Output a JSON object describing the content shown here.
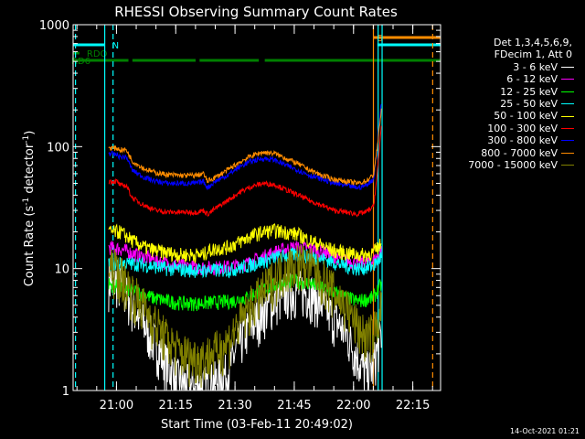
{
  "chart_data": {
    "type": "line",
    "title": "RHESSI Observing Summary Count Rates",
    "xlabel": "Start Time (03-Feb-11 20:49:02)",
    "ylabel_prefix": "Count Rate (s",
    "ylabel_mid": " detector",
    "ylabel_sup": "-1",
    "y_scale": "log",
    "ylim": [
      1,
      1000
    ],
    "xlim_minutes_after_start": [
      0,
      93
    ],
    "x_ticks": [
      {
        "label": "21:00",
        "minutes": 10.97
      },
      {
        "label": "21:15",
        "minutes": 25.97
      },
      {
        "label": "21:30",
        "minutes": 40.97
      },
      {
        "label": "21:45",
        "minutes": 55.97
      },
      {
        "label": "22:00",
        "minutes": 70.97
      },
      {
        "label": "22:15",
        "minutes": 85.97
      }
    ],
    "y_ticks": [
      {
        "label": "1",
        "value": 1
      },
      {
        "label": "10",
        "value": 10
      },
      {
        "label": "100",
        "value": 100
      },
      {
        "label": "1000",
        "value": 1000
      }
    ],
    "legend_header": [
      "Det 1,3,4,5,6,9,",
      "FDecim 1, Att 0"
    ],
    "legend_placement": "right",
    "series": [
      {
        "name": "3 - 6 keV",
        "color": "#ffffff",
        "x": [
          9.0,
          11.0,
          13.0,
          15.0,
          18.0,
          21.0,
          24.0,
          27.0,
          30.0,
          33.0,
          36.0,
          39.0,
          42.0,
          45.0,
          48.0,
          51.0,
          54.0,
          57.0,
          60.0,
          63.0,
          66.0,
          69.0,
          72.0,
          74.0,
          76.0,
          78.0
        ],
        "y": [
          8.0,
          8.0,
          6.5,
          5.0,
          3.5,
          2.4,
          1.6,
          1.2,
          1.1,
          1.1,
          1.2,
          1.4,
          2.5,
          3.5,
          4.5,
          5.6,
          6.4,
          6.8,
          6.4,
          5.2,
          4.0,
          3.0,
          1.9,
          1.4,
          1.6,
          3.0
        ]
      },
      {
        "name": "6 - 12 keV",
        "color": "#ff00ff",
        "x": [
          9.0,
          12.0,
          16.0,
          20.0,
          24.0,
          28.0,
          32.0,
          36.0,
          40.0,
          44.0,
          48.0,
          52.0,
          56.0,
          60.0,
          64.0,
          68.0,
          72.0,
          76.0,
          78.0
        ],
        "y": [
          15.0,
          14.5,
          13.0,
          12.0,
          11.0,
          10.5,
          10.2,
          10.2,
          10.4,
          11.0,
          12.5,
          14.0,
          15.0,
          14.5,
          13.5,
          12.0,
          11.0,
          11.5,
          14.0
        ]
      },
      {
        "name": "12 - 25 keV",
        "color": "#00ff00",
        "x": [
          9.0,
          12.0,
          16.0,
          20.0,
          24.0,
          28.0,
          32.0,
          36.0,
          40.0,
          44.0,
          48.0,
          52.0,
          56.0,
          60.0,
          64.0,
          68.0,
          72.0,
          76.0,
          78.0
        ],
        "y": [
          7.5,
          7.0,
          6.5,
          5.8,
          5.4,
          5.2,
          5.2,
          5.3,
          5.4,
          5.8,
          6.8,
          7.5,
          8.0,
          7.6,
          6.8,
          6.0,
          5.4,
          5.8,
          7.5
        ]
      },
      {
        "name": "25 - 50 keV",
        "color": "#00ffff",
        "x": [
          9.0,
          12.0,
          16.0,
          20.0,
          24.0,
          28.0,
          32.0,
          36.0,
          40.0,
          44.0,
          48.0,
          52.0,
          56.0,
          60.0,
          64.0,
          68.0,
          72.0,
          76.0,
          78.0
        ],
        "y": [
          11.0,
          11.0,
          11.0,
          10.5,
          10.0,
          9.8,
          9.7,
          9.7,
          9.8,
          10.5,
          11.5,
          12.5,
          13.0,
          12.6,
          11.8,
          10.8,
          10.0,
          10.5,
          12.5
        ]
      },
      {
        "name": "50 - 100 keV",
        "color": "#ffff00",
        "x": [
          9.0,
          11.0,
          12.0,
          15.0,
          18.0,
          21.0,
          24.0,
          27.0,
          31.0,
          33.0,
          34.0,
          36.0,
          39.0,
          42.0,
          45.0,
          48.0,
          51.0,
          54.0,
          57.0,
          60.0,
          63.0,
          66.0,
          69.0,
          72.0,
          74.0,
          76.0,
          78.0
        ],
        "y": [
          20.0,
          20.0,
          20.0,
          17.0,
          15.0,
          14.0,
          13.5,
          13.0,
          13.0,
          13.0,
          14.0,
          14.5,
          15.0,
          16.5,
          18.5,
          20.0,
          20.5,
          20.0,
          19.0,
          17.0,
          15.5,
          14.0,
          13.5,
          13.0,
          13.0,
          13.5,
          16.0
        ]
      },
      {
        "name": "100 - 300 keV",
        "color": "#ff0000",
        "x": [
          9.0,
          11.0,
          12.0,
          13.5,
          15.0,
          18.0,
          21.0,
          24.0,
          27.0,
          31.0,
          33.0,
          34.0,
          36.0,
          39.0,
          42.0,
          45.0,
          48.0,
          51.0,
          54.0,
          57.0,
          60.0,
          63.0,
          66.0,
          69.0,
          72.0,
          74.0,
          76.0,
          77.0,
          78.0
        ],
        "y": [
          52.0,
          52.0,
          48.0,
          48.0,
          38.0,
          33.0,
          30.0,
          29.0,
          29.0,
          29.0,
          30.0,
          28.0,
          31.0,
          36.0,
          42.0,
          47.0,
          50.0,
          49.0,
          44.0,
          40.0,
          36.0,
          33.0,
          30.0,
          29.0,
          28.0,
          29.0,
          32.0,
          60.0,
          150.0
        ]
      },
      {
        "name": "300 - 800 keV",
        "color": "#0000ff",
        "x": [
          9.0,
          11.0,
          12.0,
          13.5,
          15.0,
          18.0,
          21.0,
          24.0,
          27.0,
          31.0,
          33.0,
          34.0,
          36.0,
          39.0,
          42.0,
          45.0,
          48.0,
          51.0,
          54.0,
          57.0,
          60.0,
          63.0,
          66.0,
          69.0,
          72.0,
          74.0,
          76.0,
          77.0,
          78.0
        ],
        "y": [
          88.0,
          86.0,
          82.0,
          82.0,
          64.0,
          56.0,
          52.0,
          50.0,
          50.0,
          50.0,
          52.0,
          46.0,
          52.0,
          58.0,
          68.0,
          76.0,
          80.0,
          78.0,
          70.0,
          64.0,
          58.0,
          54.0,
          50.0,
          48.0,
          46.0,
          48.0,
          54.0,
          100.0,
          230.0
        ]
      },
      {
        "name": "800 - 7000 keV",
        "color": "#ff8c00",
        "x": [
          9.0,
          11.0,
          12.0,
          13.5,
          15.0,
          18.0,
          21.0,
          24.0,
          27.0,
          31.0,
          33.0,
          34.0,
          36.0,
          39.0,
          42.0,
          45.0,
          48.0,
          51.0,
          54.0,
          57.0,
          60.0,
          63.0,
          66.0,
          69.0,
          72.0,
          74.0,
          76.0,
          77.0,
          78.0
        ],
        "y": [
          98.0,
          97.0,
          94.0,
          94.0,
          76.0,
          66.0,
          61.0,
          59.0,
          58.0,
          58.0,
          60.0,
          52.0,
          56.0,
          64.0,
          74.0,
          84.0,
          90.0,
          88.0,
          80.0,
          72.0,
          64.0,
          58.0,
          54.0,
          52.0,
          50.0,
          52.0,
          58.0,
          100.0,
          200.0
        ]
      },
      {
        "name": "7000 - 15000 keV",
        "color": "#808000",
        "x": [
          9.0,
          11.0,
          13.0,
          15.0,
          18.0,
          21.0,
          24.0,
          27.0,
          30.0,
          33.0,
          36.0,
          39.0,
          42.0,
          45.0,
          48.0,
          51.0,
          54.0,
          57.0,
          60.0,
          63.0,
          66.0,
          69.0,
          72.0,
          74.0,
          76.0,
          78.0
        ],
        "y": [
          10.0,
          10.0,
          8.0,
          6.5,
          4.8,
          3.5,
          2.6,
          2.1,
          1.9,
          1.9,
          2.1,
          2.5,
          3.6,
          5.0,
          6.5,
          8.5,
          10.5,
          11.5,
          10.5,
          8.5,
          6.5,
          5.0,
          3.4,
          2.8,
          3.0,
          5.0
        ]
      }
    ],
    "flag_bars": [
      {
        "label": "S",
        "color": "#ff8c00",
        "segments": [
          [
            76.0,
            93.0
          ]
        ],
        "row": 0
      },
      {
        "label": "N",
        "color": "#00ffff",
        "segments": [
          [
            0.0,
            8.0
          ],
          [
            77.0,
            93.0
          ]
        ],
        "row": 1
      },
      {
        "label": "RDO",
        "color": "#008000",
        "segments": [
          [
            0.0,
            1.6
          ]
        ],
        "row": 2
      },
      {
        "label": "RD6",
        "color": "#008000",
        "segments": [
          [
            0.0,
            14.0
          ],
          [
            15.0,
            31.0
          ],
          [
            32.0,
            47.0
          ],
          [
            48.5,
            93.0
          ]
        ],
        "row": 3
      }
    ],
    "vertical_markers": [
      {
        "minutes": 0.6,
        "color": "#00ffff",
        "style": "dashed"
      },
      {
        "minutes": 10.1,
        "color": "#00ffff",
        "style": "dashed"
      },
      {
        "minutes": 8.0,
        "color": "#00ffff",
        "style": "solid"
      },
      {
        "minutes": 76.0,
        "color": "#ff8c00",
        "style": "solid"
      },
      {
        "minutes": 77.2,
        "color": "#00ffff",
        "style": "solid"
      },
      {
        "minutes": 78.2,
        "color": "#00ffff",
        "style": "solid"
      },
      {
        "minutes": 91.0,
        "color": "#ff8c00",
        "style": "dashed"
      }
    ]
  },
  "footer": {
    "timestamp": "14-Oct-2021 01:21"
  }
}
